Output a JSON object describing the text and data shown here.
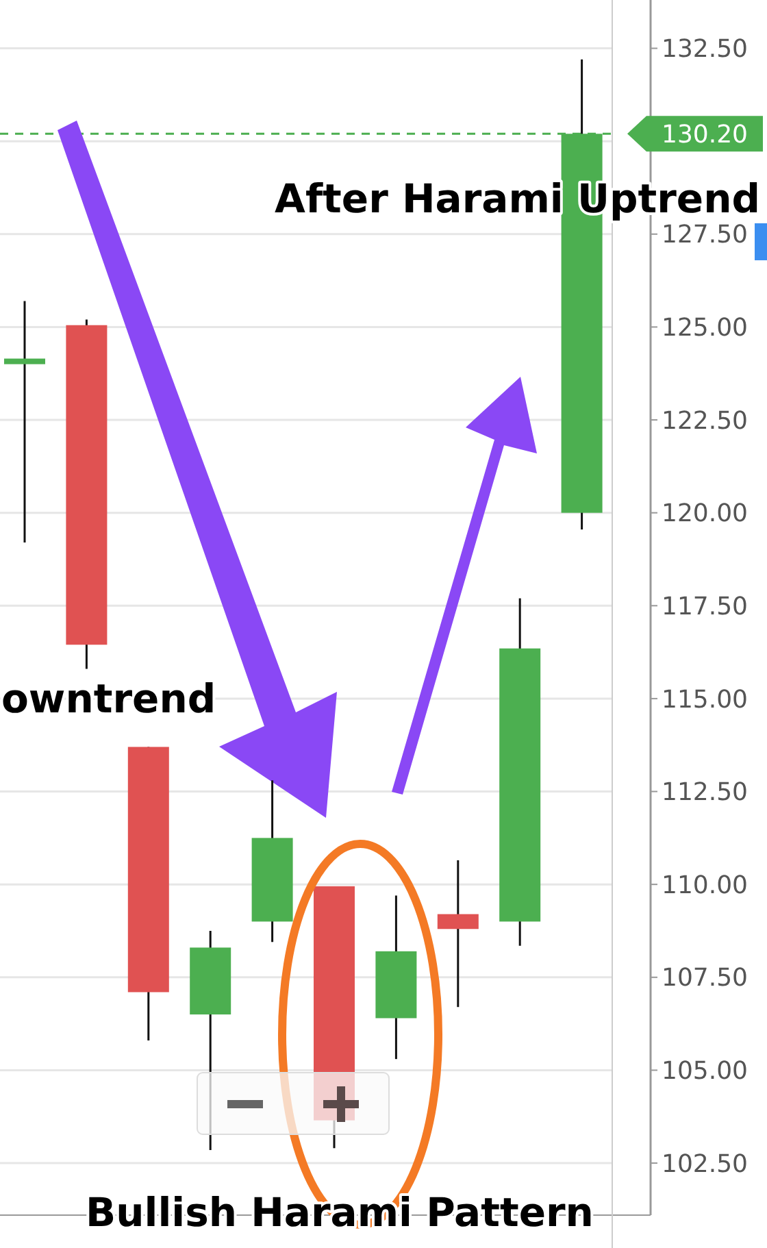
{
  "chart_data": {
    "type": "candlestick",
    "categories": [
      null,
      null,
      null,
      null,
      null,
      null,
      null,
      null,
      null,
      null
    ],
    "ohlc": [
      [
        124.0,
        125.7,
        119.2,
        124.15
      ],
      [
        125.05,
        125.2,
        115.8,
        116.45
      ],
      [
        113.7,
        113.7,
        105.8,
        107.1
      ],
      [
        106.5,
        108.75,
        102.85,
        108.3
      ],
      [
        109.0,
        112.8,
        108.45,
        111.25
      ],
      [
        109.95,
        109.95,
        102.9,
        103.65
      ],
      [
        106.4,
        109.7,
        105.3,
        108.2
      ],
      [
        109.2,
        110.65,
        106.7,
        108.8
      ],
      [
        109.0,
        117.7,
        108.35,
        116.35
      ],
      [
        120.0,
        132.2,
        119.55,
        130.2
      ]
    ],
    "ylim": [
      101.1,
      133.8
    ],
    "yticks": [
      {
        "value": 102.5,
        "label": "102.50"
      },
      {
        "value": 105,
        "label": "105.00"
      },
      {
        "value": 107.5,
        "label": "107.50"
      },
      {
        "value": 110,
        "label": "110.00"
      },
      {
        "value": 112.5,
        "label": "112.50"
      },
      {
        "value": 115,
        "label": "115.00"
      },
      {
        "value": 117.5,
        "label": "117.50"
      },
      {
        "value": 120,
        "label": "120.00"
      },
      {
        "value": 122.5,
        "label": "122.50"
      },
      {
        "value": 125,
        "label": "125.00"
      },
      {
        "value": 127.5,
        "label": "127.50"
      },
      {
        "value": 130,
        "label": null
      },
      {
        "value": 132.5,
        "label": "132.50"
      }
    ],
    "tick_labels": "y",
    "grid": "y",
    "colors": [
      "#4caf50",
      "#e05252",
      "#e05252",
      "#4caf50",
      "#4caf50",
      "#e05252",
      "#4caf50",
      "#e05252",
      "#4caf50",
      "#4caf50"
    ],
    "ref_lines": [
      {
        "axis": "y",
        "value": 130.2,
        "label": "130.20",
        "color": "#4caf50",
        "line_style": "dashed"
      }
    ],
    "annotations": [
      "After Harami Uptrend",
      "owntrend",
      "Bullish Harami Pattern"
    ]
  }
}
